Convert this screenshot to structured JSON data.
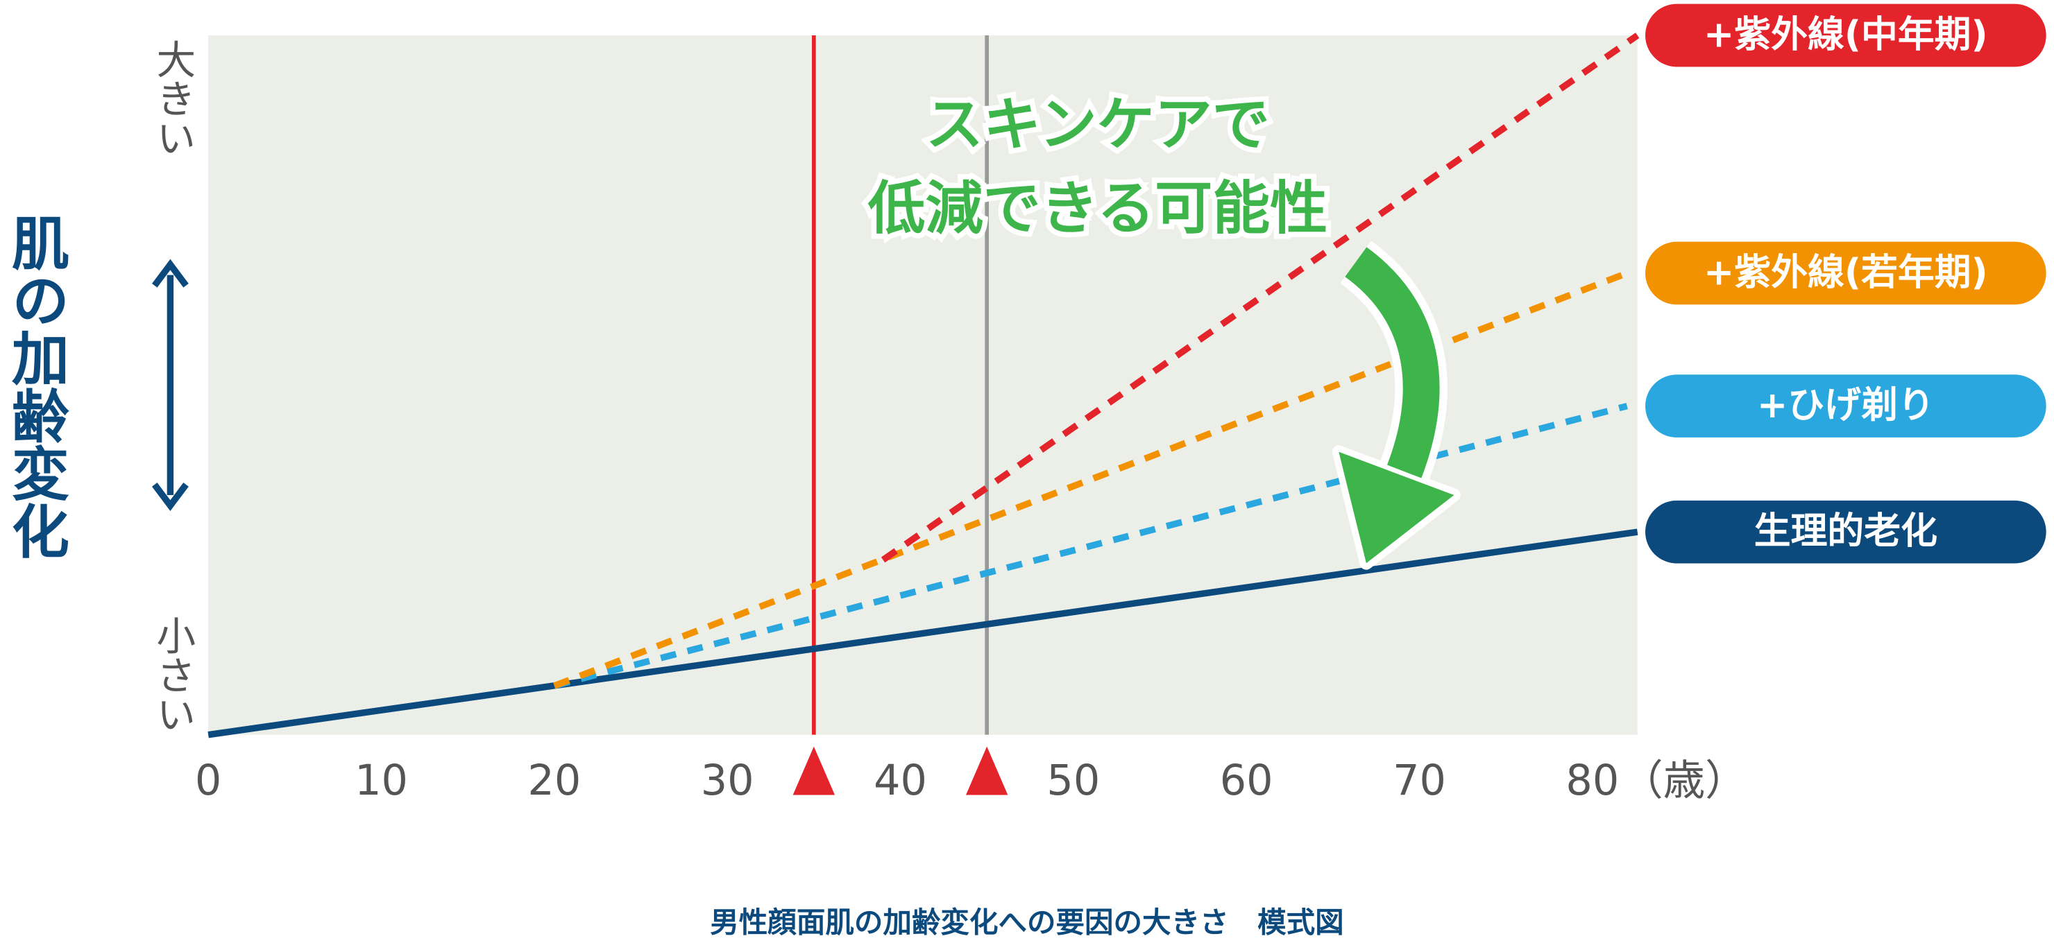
{
  "chart_data": {
    "type": "line",
    "ylabel": "肌の加齢変化",
    "y_top_label": "大きい",
    "y_bottom_label": "小さい",
    "x_unit": "（歳）",
    "caption": "男性顔面肌の加齢変化への要因の大きさ　模式図",
    "annotation": [
      "スキンケアで",
      "低減できる可能性"
    ],
    "xlim": [
      0,
      82.6
    ],
    "ylim": [
      0,
      100
    ],
    "xticks": [
      0,
      10,
      20,
      30,
      40,
      50,
      60,
      70,
      80
    ],
    "markers": [
      {
        "x": 35,
        "color": "#e4242b"
      },
      {
        "x": 45,
        "color": "#999999"
      }
    ],
    "series": [
      {
        "name": "生理的老化",
        "color": "#0c4a7d",
        "linestyle": "solid",
        "x": [
          0,
          82.6
        ],
        "values": [
          0,
          29
        ]
      },
      {
        "name": "+ひげ剃り",
        "color": "#2aa7df",
        "linestyle": "dashed",
        "x": [
          20,
          82
        ],
        "values": [
          7,
          47
        ]
      },
      {
        "name": "+紫外線(若年期)",
        "color": "#f39200",
        "linestyle": "dashed",
        "x": [
          20,
          82
        ],
        "values": [
          7,
          66
        ]
      },
      {
        "name": "+紫外線(中年期)",
        "color": "#e4242b",
        "linestyle": "dashed",
        "x": [
          39,
          82.6
        ],
        "values": [
          25,
          100
        ]
      }
    ]
  }
}
